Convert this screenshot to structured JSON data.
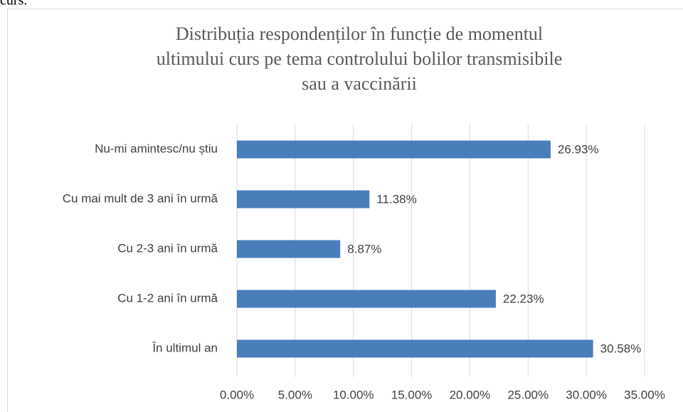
{
  "page_text": "curs.",
  "chart_data": {
    "type": "bar",
    "orientation": "horizontal",
    "title": [
      "Distribuția respondenților în funcție de momentul",
      "ultimului curs pe tema controlului bolilor transmisibile",
      "sau a vaccinării"
    ],
    "categories": [
      "Nu-mi amintesc/nu știu",
      "Cu mai mult de 3 ani în urmă",
      "Cu 2-3 ani în urmă",
      "Cu 1-2 ani în urmă",
      "În ultimul an"
    ],
    "values": [
      26.93,
      11.38,
      8.87,
      22.23,
      30.58
    ],
    "value_labels": [
      "26.93%",
      "11.38%",
      "8.87%",
      "22.23%",
      "30.58%"
    ],
    "color": "#4a7ebb",
    "xlim": [
      0,
      35
    ],
    "xticks": [
      {
        "value": 0,
        "label": "0.00%"
      },
      {
        "value": 5,
        "label": "5.00%"
      },
      {
        "value": 10,
        "label": "10.00%"
      },
      {
        "value": 15,
        "label": "15.00%"
      },
      {
        "value": 20,
        "label": "20.00%"
      },
      {
        "value": 25,
        "label": "25.00%"
      },
      {
        "value": 30,
        "label": "30.00%"
      },
      {
        "value": 35,
        "label": "35.00%"
      }
    ],
    "grid": true
  }
}
